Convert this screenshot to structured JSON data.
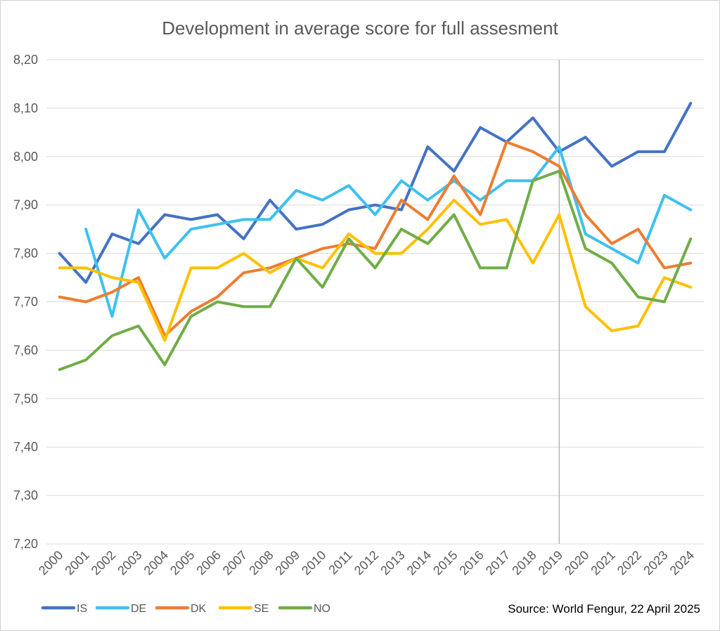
{
  "chart_data": {
    "type": "line",
    "title": "Development in average score for full assesment",
    "source": "Source: World Fengur, 22 April 2025",
    "xlabel": "",
    "ylabel": "",
    "ylim": [
      7.2,
      8.2
    ],
    "yticks": [
      "7,20",
      "7,30",
      "7,40",
      "7,50",
      "7,60",
      "7,70",
      "7,80",
      "7,90",
      "8,00",
      "8,10",
      "8,20"
    ],
    "grid": true,
    "legend_position": "bottom-left",
    "marker_year": "2019",
    "categories": [
      "2000",
      "2001",
      "2002",
      "2003",
      "2004",
      "2005",
      "2006",
      "2007",
      "2008",
      "2009",
      "2010",
      "2011",
      "2012",
      "2013",
      "2014",
      "2015",
      "2016",
      "2017",
      "2018",
      "2019",
      "2020",
      "2021",
      "2022",
      "2023",
      "2024"
    ],
    "series": [
      {
        "name": "IS",
        "color": "#4472C4",
        "values": [
          7.8,
          7.74,
          7.84,
          7.82,
          7.88,
          7.87,
          7.88,
          7.83,
          7.91,
          7.85,
          7.86,
          7.89,
          7.9,
          7.89,
          8.02,
          7.97,
          8.06,
          8.03,
          8.08,
          8.01,
          8.04,
          7.98,
          8.01,
          8.01,
          8.11
        ]
      },
      {
        "name": "DE",
        "color": "#3FC0F0",
        "values": [
          null,
          7.85,
          7.67,
          7.89,
          7.79,
          7.85,
          7.86,
          7.87,
          7.87,
          7.93,
          7.91,
          7.94,
          7.88,
          7.95,
          7.91,
          7.95,
          7.91,
          7.95,
          7.95,
          8.02,
          7.84,
          7.81,
          7.78,
          7.92,
          7.89
        ]
      },
      {
        "name": "DK",
        "color": "#ED7D31",
        "values": [
          7.71,
          7.7,
          7.72,
          7.75,
          7.63,
          7.68,
          7.71,
          7.76,
          7.77,
          7.79,
          7.81,
          7.82,
          7.81,
          7.91,
          7.87,
          7.96,
          7.88,
          8.03,
          8.01,
          7.98,
          7.88,
          7.82,
          7.85,
          7.77,
          7.78
        ]
      },
      {
        "name": "SE",
        "color": "#FFC000",
        "values": [
          7.77,
          7.77,
          7.75,
          7.74,
          7.62,
          7.77,
          7.77,
          7.8,
          7.76,
          7.79,
          7.77,
          7.84,
          7.8,
          7.8,
          7.85,
          7.91,
          7.86,
          7.87,
          7.78,
          7.88,
          7.69,
          7.64,
          7.65,
          7.75,
          7.73
        ]
      },
      {
        "name": "NO",
        "color": "#70AD47",
        "values": [
          7.56,
          7.58,
          7.63,
          7.65,
          7.57,
          7.67,
          7.7,
          7.69,
          7.69,
          7.79,
          7.73,
          7.83,
          7.77,
          7.85,
          7.82,
          7.88,
          7.77,
          7.77,
          7.95,
          7.97,
          7.81,
          7.78,
          7.71,
          7.7,
          7.83
        ]
      }
    ]
  }
}
